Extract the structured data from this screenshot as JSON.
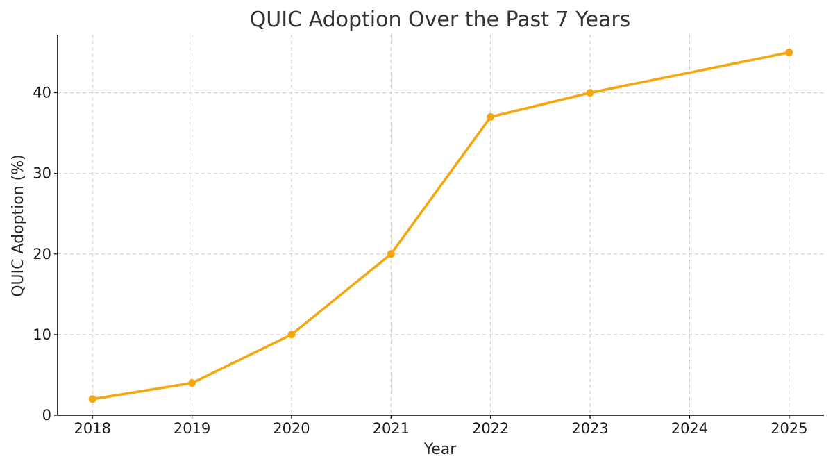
{
  "chart_data": {
    "type": "line",
    "title": "QUIC Adoption Over the Past 7 Years",
    "xlabel": "Year",
    "ylabel": "QUIC Adoption (%)",
    "x": [
      2018,
      2019,
      2020,
      2021,
      2022,
      2023,
      2025
    ],
    "x_ticks": [
      "2018",
      "2019",
      "2020",
      "2021",
      "2022",
      "2023",
      "2024",
      "2025"
    ],
    "y_ticks": [
      "0",
      "10",
      "20",
      "30",
      "40"
    ],
    "series": [
      {
        "values": [
          2,
          4,
          10,
          20,
          37,
          40,
          45
        ],
        "color": "#f5a70f",
        "marker": "circle"
      }
    ],
    "xlim": [
      2017.65,
      2025.35
    ],
    "ylim": [
      0,
      47.2
    ],
    "grid": true,
    "legend": "none"
  }
}
